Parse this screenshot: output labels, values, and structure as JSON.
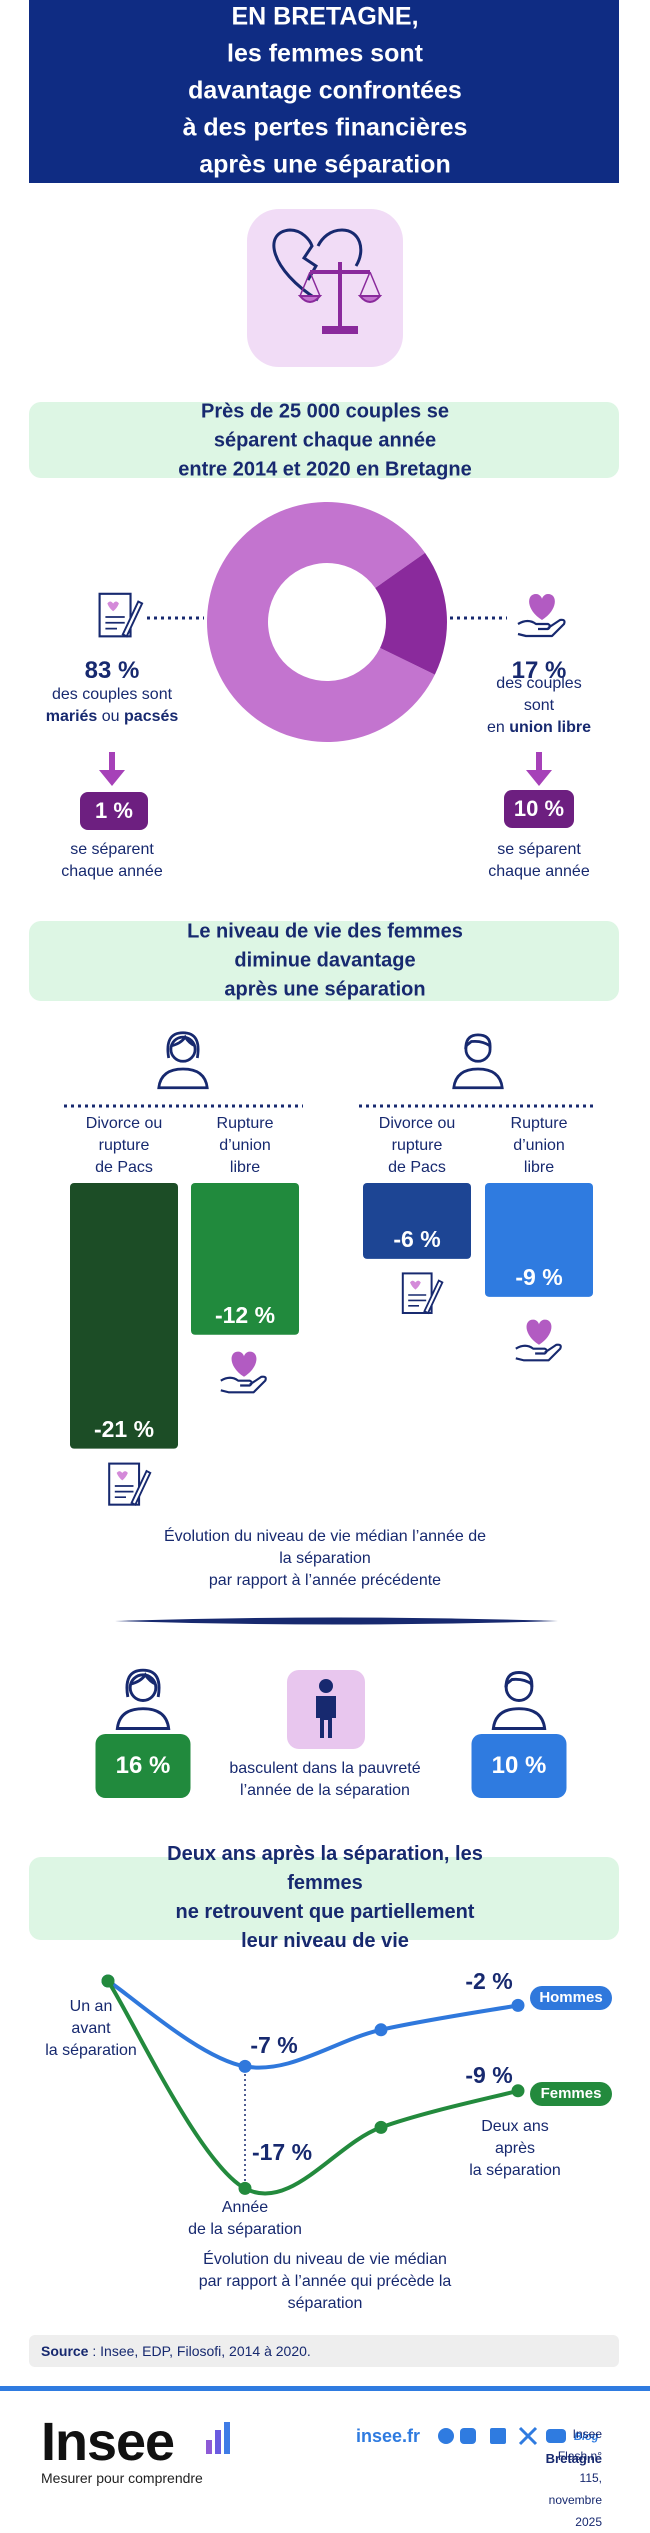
{
  "header": {
    "title": "EN BRETAGNE,\nles femmes sont davantage confrontées\nà des pertes financières\naprès une séparation"
  },
  "chart_data": [
    {
      "type": "pie",
      "title": "Près de 25 000 couples se séparent chaque année\nentre 2014 et 2020 en Bretagne",
      "values": [
        83,
        17
      ],
      "value_labels": [
        "83 %",
        "17 %"
      ],
      "colors": [
        "#c374cf",
        "#8a2a9c"
      ],
      "donut": true
    },
    {
      "type": "bar",
      "title": "Le niveau de vie des femmes diminue davantage\naprès une séparation",
      "categories": [
        "Divorce ou\nrupture\nde Pacs",
        "Rupture\nd’union\nlibre"
      ],
      "series": [
        {
          "colors": [
            "#1c4d26",
            "#218a3d"
          ],
          "values": [
            -21,
            -12
          ],
          "value_labels": [
            "-21 %",
            "-12 %"
          ]
        },
        {
          "colors": [
            "#1d4594",
            "#2f7be0"
          ],
          "values": [
            -6,
            -9
          ],
          "value_labels": [
            "-6 %",
            "-9 %"
          ]
        }
      ],
      "caption": "Évolution du niveau de vie médian l’année de la séparation\npar rapport à l’année précédente"
    },
    {
      "type": "line",
      "title": "Deux ans après la séparation, les femmes\nne retrouvent que partiellement leur niveau de vie",
      "categories": [
        "Un an\navant\nla séparation",
        "Année\nde la séparation",
        null,
        "Deux ans\naprès\nla séparation"
      ],
      "series": [
        {
          "name": "Hommes",
          "color": "#2f78dc",
          "values": [
            0,
            -7,
            -4,
            -2
          ],
          "value_labels": [
            null,
            "-7 %",
            null,
            "-2 %"
          ]
        },
        {
          "name": "Femmes",
          "color": "#238a3d",
          "values": [
            0,
            -17,
            -12,
            -9
          ],
          "value_labels": [
            null,
            "-17 %",
            null,
            "-9 %"
          ]
        }
      ],
      "caption": "Évolution du niveau de vie médian\npar rapport à l’année qui précède la séparation"
    }
  ],
  "couples": {
    "left": {
      "text": "des couples sont",
      "bold1": "mariés",
      "mid": "ou",
      "bold2": "pacsés",
      "badge": "1 %",
      "note": "se séparent\nchaque année"
    },
    "right": {
      "text": "des couples sont",
      "pre": "en",
      "bold": "union libre",
      "badge": "10 %",
      "note": "se séparent\nchaque année"
    }
  },
  "poverty": {
    "women": "16 %",
    "men": "10 %",
    "text": "basculent dans la pauvreté\nl’année de la séparation"
  },
  "source": {
    "label": "Source",
    "text": ": Insee, EDP, Filosofi, 2014 à 2020."
  },
  "footer": {
    "logo": "Insee",
    "tagline": "Mesurer pour comprendre",
    "site": "insee.fr",
    "blog": "Blog",
    "region": "Bretagne",
    "publication": "Insee Flash n° 115, novembre 2025"
  }
}
